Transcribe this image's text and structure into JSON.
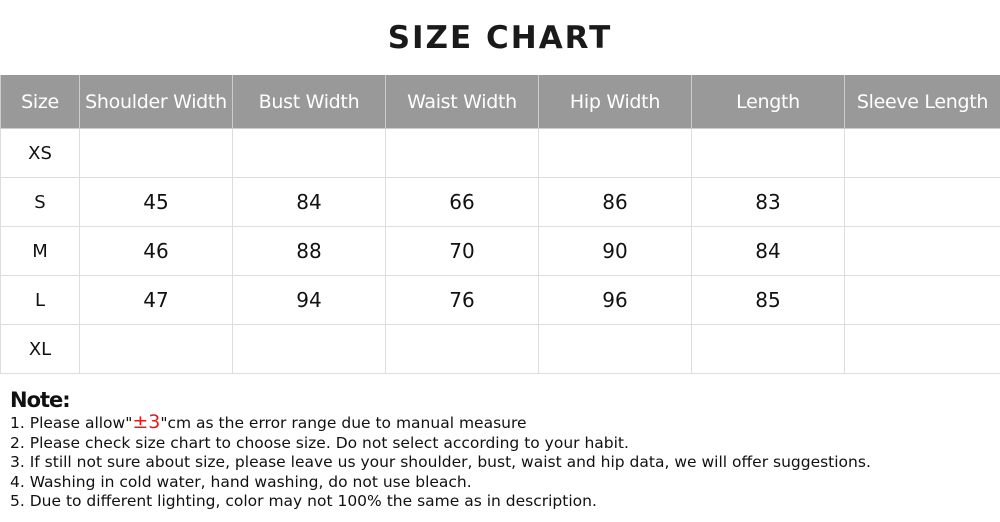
{
  "title": "SIZE CHART",
  "table": {
    "headers": [
      "Size",
      "Shoulder Width",
      "Bust Width",
      "Waist Width",
      "Hip Width",
      "Length",
      "Sleeve Length"
    ],
    "rows": [
      [
        "XS",
        "",
        "",
        "",
        "",
        "",
        ""
      ],
      [
        "S",
        "45",
        "84",
        "66",
        "86",
        "83",
        ""
      ],
      [
        "M",
        "46",
        "88",
        "70",
        "90",
        "84",
        ""
      ],
      [
        "L",
        "47",
        "94",
        "76",
        "96",
        "85",
        ""
      ],
      [
        "XL",
        "",
        "",
        "",
        "",
        "",
        ""
      ]
    ]
  },
  "note": {
    "title": "Note:",
    "line1_prefix": "1. Please allow\"",
    "line1_highlight": "±3",
    "line1_suffix": "\"cm as the error range due to manual measure",
    "lines": [
      "2. Please check size chart to choose size. Do not select according to your habit.",
      "3. If still not sure about size, please leave us your shoulder, bust, waist and hip data, we will offer suggestions.",
      "4. Washing in cold water, hand washing, do not use bleach.",
      "5. Due to different lighting, color may not 100% the same as in description."
    ]
  },
  "colors": {
    "header_bg": "#999999",
    "highlight": "#e21b1b"
  }
}
